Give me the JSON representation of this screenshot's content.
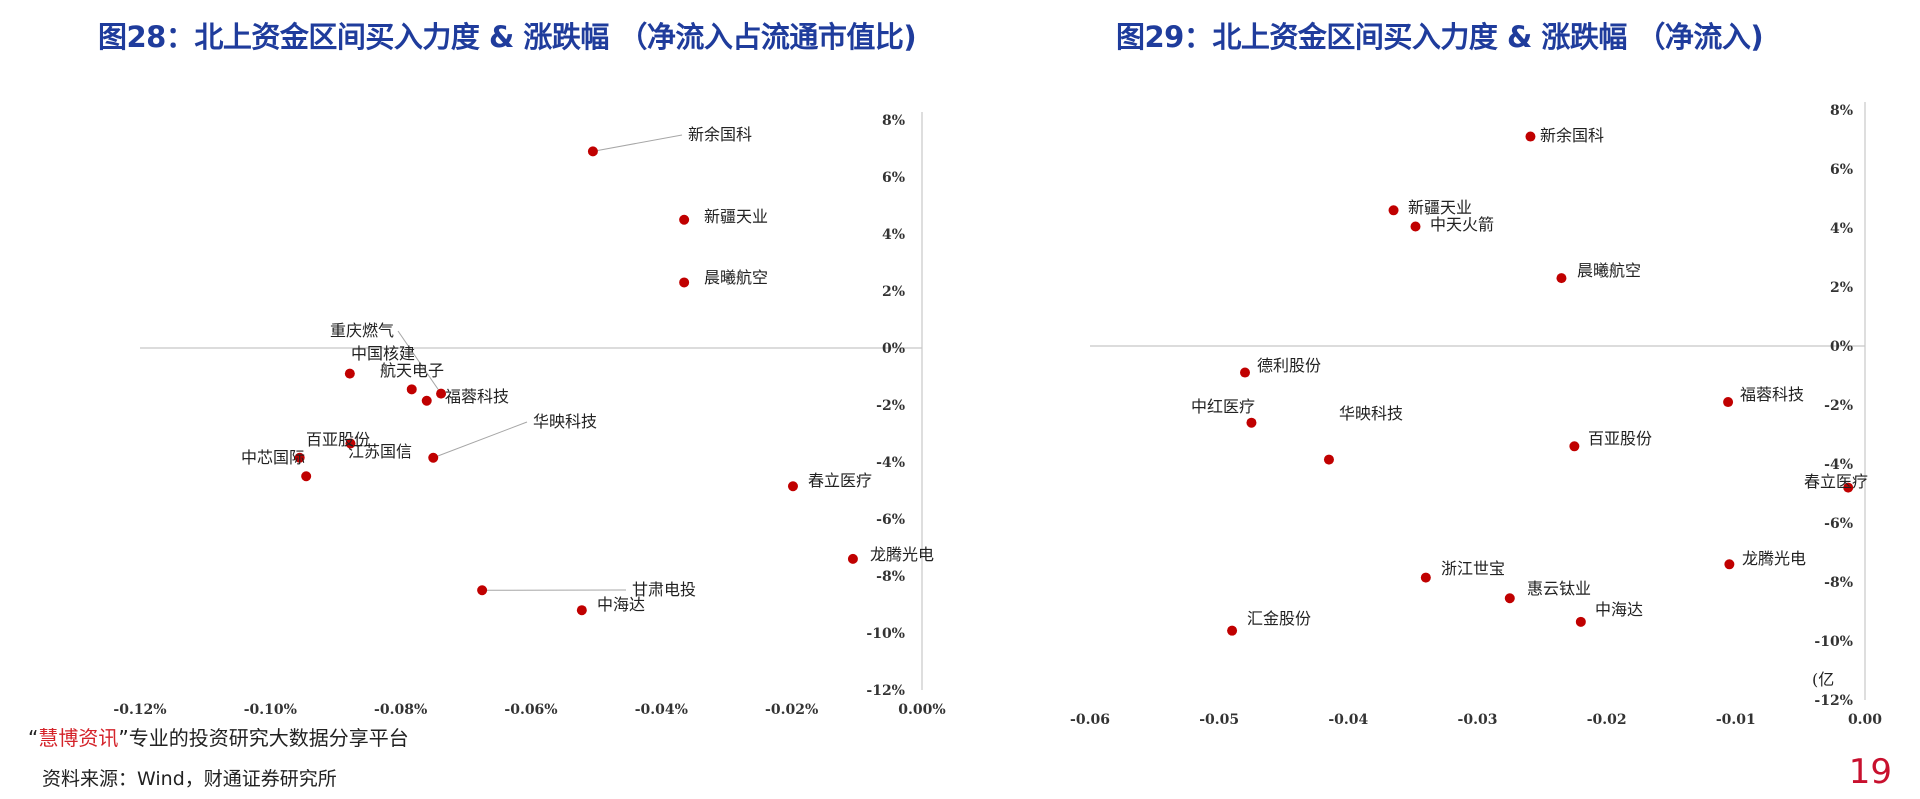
{
  "page": {
    "title_left": "图28：北上资金区间买入力度 & 涨跌幅 （净流入占流通市值比)",
    "title_right": "图29：北上资金区间买入力度 & 涨跌幅 （净流入)",
    "footer_quote_open": "“",
    "footer_brand": "慧博资讯",
    "footer_quote_close": "”",
    "footer_slogan": "专业的投资研究大数据分享平台",
    "footer_source": "资料来源：Wind，财通证券研究所",
    "page_number": "19",
    "partial_label": "(亿"
  },
  "chart_data": [
    {
      "type": "scatter",
      "title": "图28：北上资金区间买入力度 & 涨跌幅 （净流入占流通市值比)",
      "xlim": [
        -0.12,
        0.0
      ],
      "ylim": [
        -12,
        8
      ],
      "x_ticks": [
        -0.12,
        -0.1,
        -0.08,
        -0.06,
        -0.04,
        -0.02,
        0.0
      ],
      "x_tick_labels": [
        "-0.12%",
        "-0.10%",
        "-0.08%",
        "-0.06%",
        "-0.04%",
        "-0.02%",
        "0.00%"
      ],
      "y_ticks": [
        8,
        6,
        4,
        2,
        0,
        -2,
        -4,
        -6,
        -8,
        -10,
        -12
      ],
      "y_tick_labels": [
        "8%",
        "6%",
        "4%",
        "2%",
        "0%",
        "-2%",
        "-4%",
        "-6%",
        "-8%",
        "-10%",
        "-12%"
      ],
      "marker_color": "#c00000",
      "points": [
        {
          "name": "新余国科",
          "x": -0.0505,
          "y": 6.9
        },
        {
          "name": "新疆天业",
          "x": -0.0365,
          "y": 4.5
        },
        {
          "name": "晨曦航空",
          "x": -0.0365,
          "y": 2.3
        },
        {
          "name": "重庆燃气",
          "x": -0.0738,
          "y": -1.6
        },
        {
          "name": "中国核建",
          "x": -0.0878,
          "y": -0.9
        },
        {
          "name": "航天电子",
          "x": -0.0783,
          "y": -1.45
        },
        {
          "name": "福蓉科技",
          "x": -0.076,
          "y": -1.85
        },
        {
          "name": "华映科技",
          "x": -0.075,
          "y": -3.85
        },
        {
          "name": "百亚股份",
          "x": -0.0877,
          "y": -3.35
        },
        {
          "name": "江苏国信",
          "x": -0.0945,
          "y": -4.5
        },
        {
          "name": "中芯国际",
          "x": -0.0955,
          "y": -3.85
        },
        {
          "name": "春立医疗",
          "x": -0.0198,
          "y": -4.85
        },
        {
          "name": "龙腾光电",
          "x": -0.0106,
          "y": -7.4
        },
        {
          "name": "甘肃电投",
          "x": -0.0675,
          "y": -8.5
        },
        {
          "name": "中海达",
          "x": -0.0522,
          "y": -9.2
        }
      ]
    },
    {
      "type": "scatter",
      "title": "图29：北上资金区间买入力度 & 涨跌幅 （净流入)",
      "xlim": [
        -0.06,
        0.0
      ],
      "ylim": [
        -12,
        8
      ],
      "x_ticks": [
        -0.06,
        -0.05,
        -0.04,
        -0.03,
        -0.02,
        -0.01,
        0.0
      ],
      "x_tick_labels": [
        "-0.06",
        "-0.05",
        "-0.04",
        "-0.03",
        "-0.02",
        "-0.01",
        "0.00"
      ],
      "y_ticks": [
        8,
        6,
        4,
        2,
        0,
        -2,
        -4,
        -6,
        -8,
        -10,
        -12
      ],
      "y_tick_labels": [
        "8%",
        "6%",
        "4%",
        "2%",
        "0%",
        "-2%",
        "-4%",
        "-6%",
        "-8%",
        "-10%",
        "-12%"
      ],
      "marker_color": "#c00000",
      "points": [
        {
          "name": "新余国科",
          "x": -0.0259,
          "y": 7.1
        },
        {
          "name": "新疆天业",
          "x": -0.0365,
          "y": 4.6
        },
        {
          "name": "中天火箭",
          "x": -0.0348,
          "y": 4.05
        },
        {
          "name": "晨曦航空",
          "x": -0.0235,
          "y": 2.3
        },
        {
          "name": "德利股份",
          "x": -0.048,
          "y": -0.9
        },
        {
          "name": "福蓉科技",
          "x": -0.0106,
          "y": -1.9
        },
        {
          "name": "中红医疗",
          "x": -0.0475,
          "y": -2.6
        },
        {
          "name": "华映科技",
          "x": -0.0415,
          "y": -3.85
        },
        {
          "name": "百亚股份",
          "x": -0.0225,
          "y": -3.4
        },
        {
          "name": "春立医疗",
          "x": -0.0013,
          "y": -4.8
        },
        {
          "name": "龙腾光电",
          "x": -0.0105,
          "y": -7.4
        },
        {
          "name": "浙江世宝",
          "x": -0.034,
          "y": -7.85
        },
        {
          "name": "惠云钛业",
          "x": -0.0275,
          "y": -8.55
        },
        {
          "name": "中海达",
          "x": -0.022,
          "y": -9.35
        },
        {
          "name": "汇金股份",
          "x": -0.049,
          "y": -9.65
        }
      ]
    }
  ]
}
